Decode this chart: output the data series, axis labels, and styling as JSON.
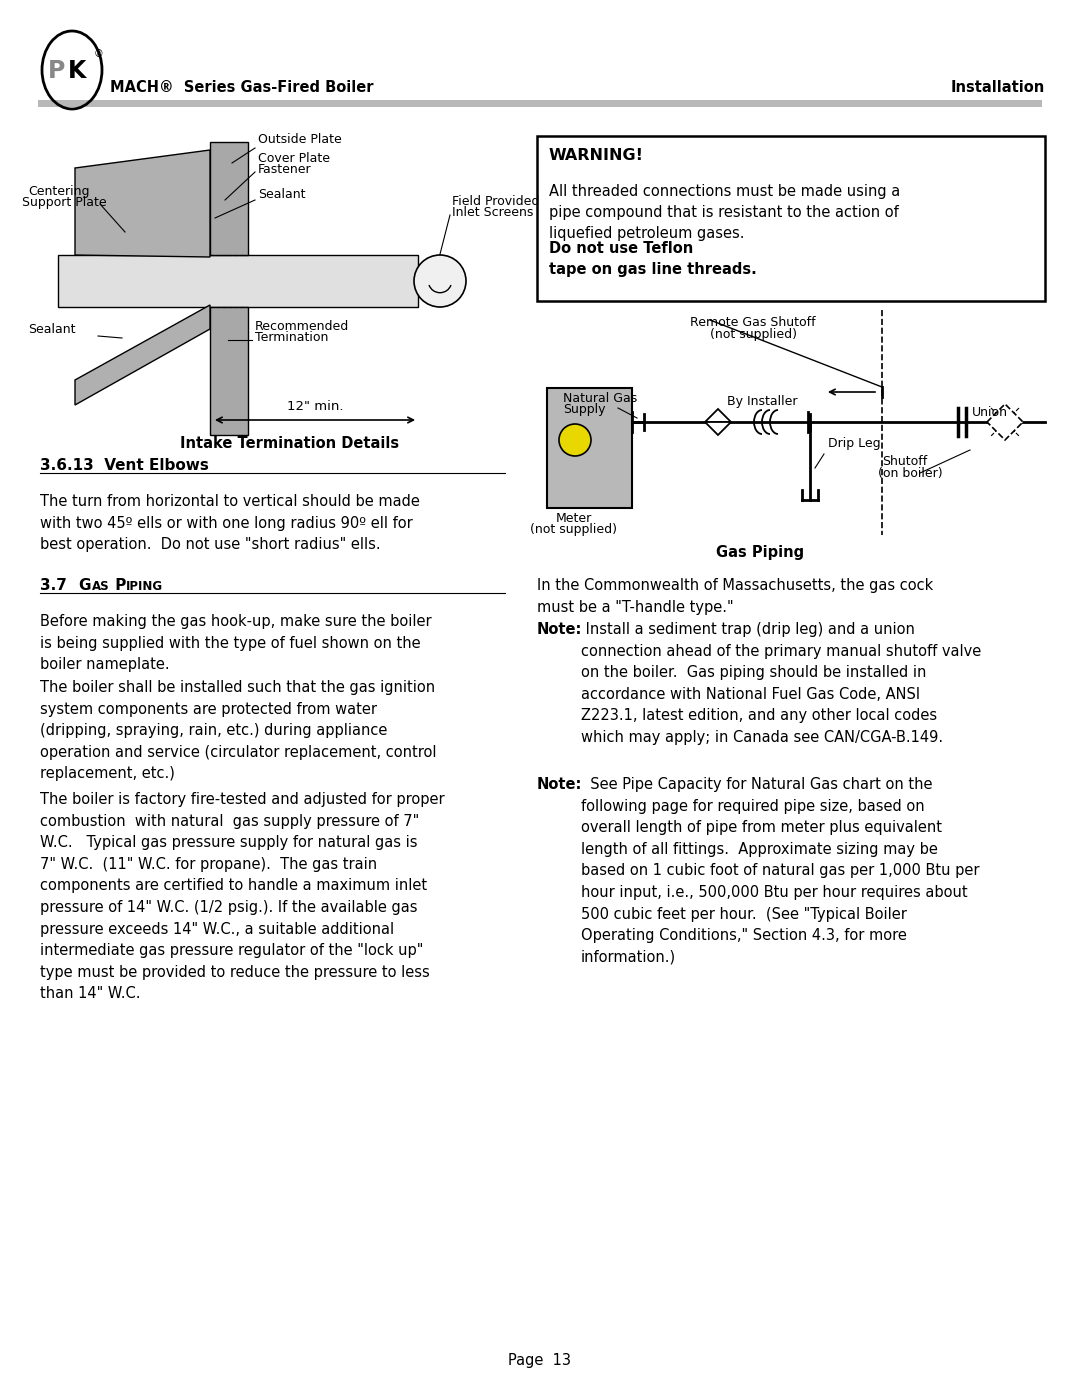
{
  "page_width": 10.8,
  "page_height": 13.97,
  "bg_color": "#ffffff",
  "header_left_text": "MACH®  Series Gas-Fired Boiler",
  "header_right_text": "Installation",
  "section_313_title": "3.6.13  Vent Elbows",
  "section_313_body": "The turn from horizontal to vertical should be made\nwith two 45º ells or with one long radius 90º ell for\nbest operation.  Do not use \"short radius\" ells.",
  "section_37_body1": "Before making the gas hook-up, make sure the boiler\nis being supplied with the type of fuel shown on the\nboiler nameplate.",
  "section_37_body2": "The boiler shall be installed such that the gas ignition\nsystem components are protected from water\n(dripping, spraying, rain, etc.) during appliance\noperation and service (circulator replacement, control\nreplacement, etc.)",
  "section_37_body3": "The boiler is factory fire-tested and adjusted for proper\ncombustion  with natural  gas supply pressure of 7\"\nW.C.   Typical gas pressure supply for natural gas is\n7\" W.C.  (11\" W.C. for propane).  The gas train\ncomponents are certified to handle a maximum inlet\npressure of 14\" W.C. (1/2 psig.). If the available gas\npressure exceeds 14\" W.C., a suitable additional\nintermediate gas pressure regulator of the \"lock up\"\ntype must be provided to reduce the pressure to less\nthan 14\" W.C.",
  "warning_title": "WARNING!",
  "warning_body_normal": "All threaded connections must be made using a\npipe compound that is resistant to the action of\nliquefied petroleum gases.  ",
  "warning_body_bold": "Do not use Teflon\ntape on gas line threads.",
  "right_body1": "In the Commonwealth of Massachusetts, the gas cock\nmust be a \"T-handle type.\"",
  "right_note1_body": " Install a sediment trap (drip leg) and a union\nconnection ahead of the primary manual shutoff valve\non the boiler.  Gas piping should be installed in\naccordance with National Fuel Gas Code, ANSI\nZ223.1, latest edition, and any other local codes\nwhich may apply; in Canada see CAN/CGA-B.149.",
  "right_note2_body": "  See Pipe Capacity for Natural Gas chart on the\nfollowing page for required pipe size, based on\noverall length of pipe from meter plus equivalent\nlength of all fittings.  Approximate sizing may be\nbased on 1 cubic foot of natural gas per 1,000 Btu per\nhour input, i.e., 500,000 Btu per hour requires about\n500 cubic feet per hour.  (See \"Typical Boiler\nOperating Conditions,\" Section 4.3, for more\ninformation.)",
  "intake_caption": "Intake Termination Details",
  "gas_piping_caption": "Gas Piping",
  "page_number": "Page  13"
}
